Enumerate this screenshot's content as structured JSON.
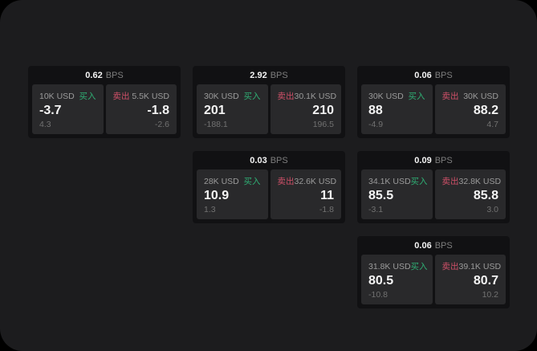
{
  "colors": {
    "backdrop": "#000000",
    "panel_bg": "#1c1c1e",
    "card_bg": "#111113",
    "subpanel_bg": "#29292b",
    "text_white": "#f4f4f4",
    "label_gray": "#9b9b9b",
    "delta_gray": "#717171",
    "bps_gray": "#7e7e7e",
    "buy_green": "#2fae74",
    "sell_red": "#cf5068"
  },
  "labels": {
    "bps_unit": "BPS",
    "buy": "买入",
    "sell": "卖出"
  },
  "cards": [
    {
      "row": 1,
      "col": 1,
      "bps": "0.62",
      "buy": {
        "size": "10K USD",
        "price": "-3.7",
        "delta": "4.3"
      },
      "sell": {
        "size": "5.5K USD",
        "price": "-1.8",
        "delta": "-2.6"
      }
    },
    {
      "row": 1,
      "col": 2,
      "bps": "2.92",
      "buy": {
        "size": "30K USD",
        "price": "201",
        "delta": "-188.1"
      },
      "sell": {
        "size": "30.1K USD",
        "price": "210",
        "delta": "196.5"
      }
    },
    {
      "row": 1,
      "col": 3,
      "bps": "0.06",
      "buy": {
        "size": "30K USD",
        "price": "88",
        "delta": "-4.9"
      },
      "sell": {
        "size": "30K USD",
        "price": "88.2",
        "delta": "4.7"
      }
    },
    {
      "row": 2,
      "col": 2,
      "bps": "0.03",
      "buy": {
        "size": "28K USD",
        "price": "10.9",
        "delta": "1.3"
      },
      "sell": {
        "size": "32.6K USD",
        "price": "11",
        "delta": "-1.8"
      }
    },
    {
      "row": 2,
      "col": 3,
      "bps": "0.09",
      "buy": {
        "size": "34.1K USD",
        "price": "85.5",
        "delta": "-3.1"
      },
      "sell": {
        "size": "32.8K USD",
        "price": "85.8",
        "delta": "3.0"
      }
    },
    {
      "row": 3,
      "col": 3,
      "bps": "0.06",
      "buy": {
        "size": "31.8K USD",
        "price": "80.5",
        "delta": "-10.8"
      },
      "sell": {
        "size": "39.1K USD",
        "price": "80.7",
        "delta": "10.2"
      }
    }
  ]
}
